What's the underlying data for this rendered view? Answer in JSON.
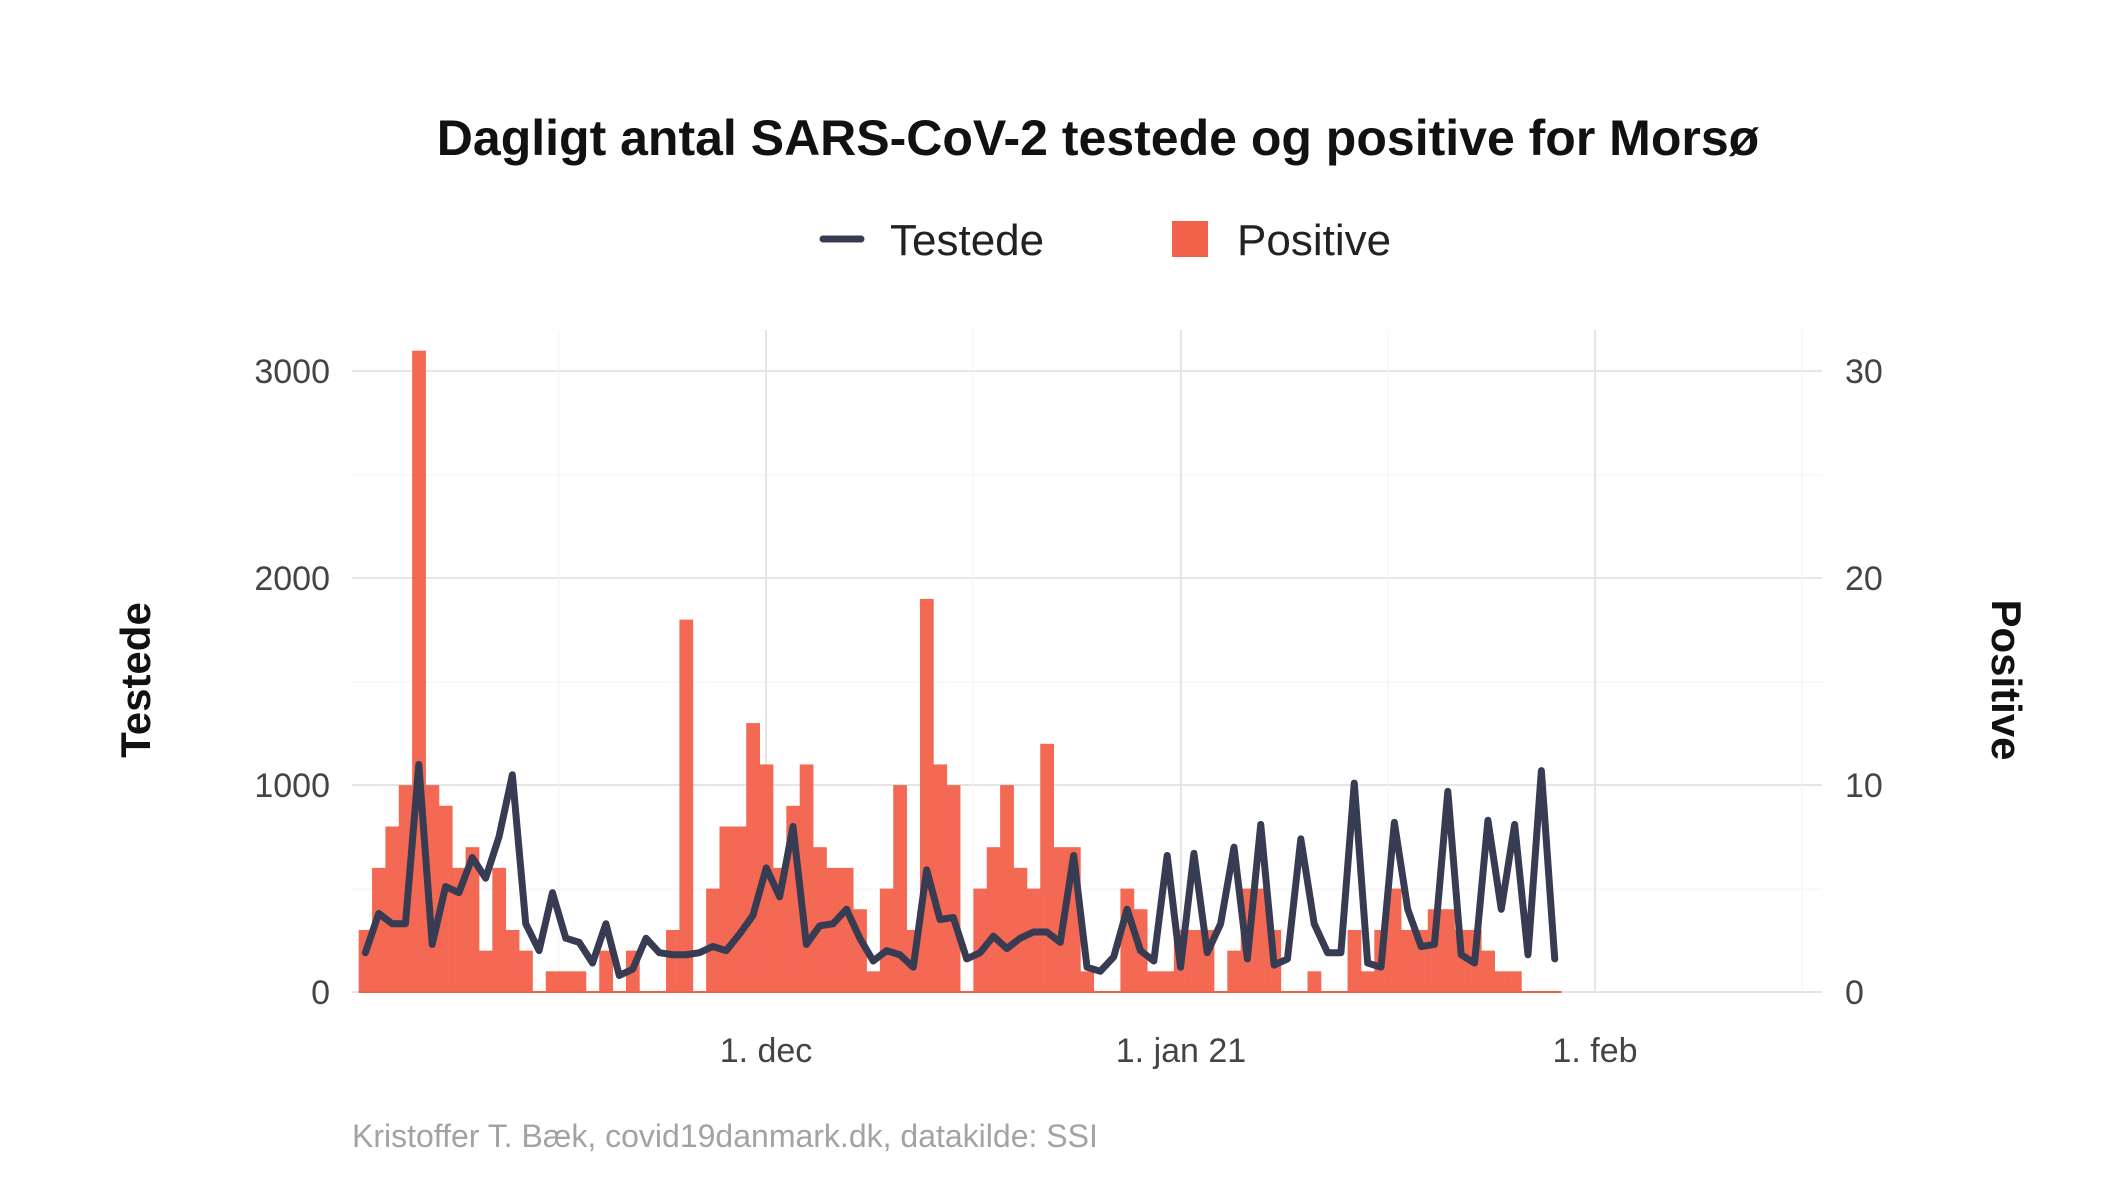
{
  "chart_data": {
    "type": "bar",
    "title": "Dagligt antal SARS-CoV-2 testede og positive for Morsø",
    "caption": "Kristoffer T. Bæk, covid19danmark.dk, datakilde: SSI",
    "ylabel_left": "Testede",
    "ylabel_right": "Positive",
    "legend": [
      {
        "name": "Testede",
        "marker": "line",
        "color": "#383c52"
      },
      {
        "name": "Positive",
        "marker": "square",
        "color": "#f2614a"
      }
    ],
    "legend_position": "top",
    "grid": true,
    "x_start": "2020-11-01",
    "x_range": [
      "2020-10-31",
      "2021-02-18"
    ],
    "x_ticks": [
      {
        "date": "2020-12-01",
        "label": "1. dec"
      },
      {
        "date": "2021-01-01",
        "label": "1. jan 21"
      },
      {
        "date": "2021-02-01",
        "label": "1. feb"
      }
    ],
    "ylim_left": [
      0,
      3200
    ],
    "yticks_left": [
      0,
      1000,
      2000,
      3000
    ],
    "ylim_right": [
      0,
      32
    ],
    "yticks_right": [
      0,
      10,
      20,
      30
    ],
    "series": [
      {
        "name": "Positive",
        "kind": "bar",
        "axis": "right",
        "values": [
          3,
          6,
          8,
          10,
          31,
          10,
          9,
          6,
          7,
          2,
          6,
          3,
          2,
          0,
          1,
          1,
          1,
          0,
          2,
          0,
          2,
          0,
          0,
          3,
          18,
          0,
          5,
          8,
          8,
          13,
          11,
          6,
          9,
          11,
          7,
          6,
          6,
          4,
          1,
          5,
          10,
          3,
          19,
          11,
          10,
          0,
          5,
          7,
          10,
          6,
          5,
          12,
          7,
          7,
          1,
          0,
          0,
          5,
          4,
          1,
          1,
          3,
          3,
          3,
          0,
          2,
          5,
          5,
          3,
          0,
          0,
          1,
          0,
          0,
          3,
          1,
          3,
          5,
          3,
          3,
          4,
          4,
          3,
          3,
          2,
          1,
          1,
          0,
          0,
          0
        ]
      },
      {
        "name": "Testede",
        "kind": "line",
        "axis": "left",
        "values": [
          190,
          380,
          330,
          330,
          1100,
          230,
          510,
          480,
          650,
          550,
          750,
          1050,
          330,
          200,
          480,
          260,
          240,
          140,
          330,
          80,
          110,
          260,
          190,
          180,
          180,
          190,
          220,
          200,
          280,
          370,
          600,
          460,
          800,
          230,
          320,
          330,
          400,
          260,
          150,
          200,
          180,
          120,
          590,
          350,
          360,
          160,
          190,
          270,
          210,
          260,
          290,
          290,
          240,
          660,
          120,
          100,
          170,
          400,
          200,
          150,
          660,
          120,
          670,
          190,
          330,
          700,
          160,
          810,
          130,
          160,
          740,
          330,
          190,
          190,
          1010,
          140,
          120,
          820,
          400,
          220,
          230,
          970,
          180,
          140,
          830,
          400,
          810,
          180,
          1070,
          160
        ]
      }
    ]
  }
}
